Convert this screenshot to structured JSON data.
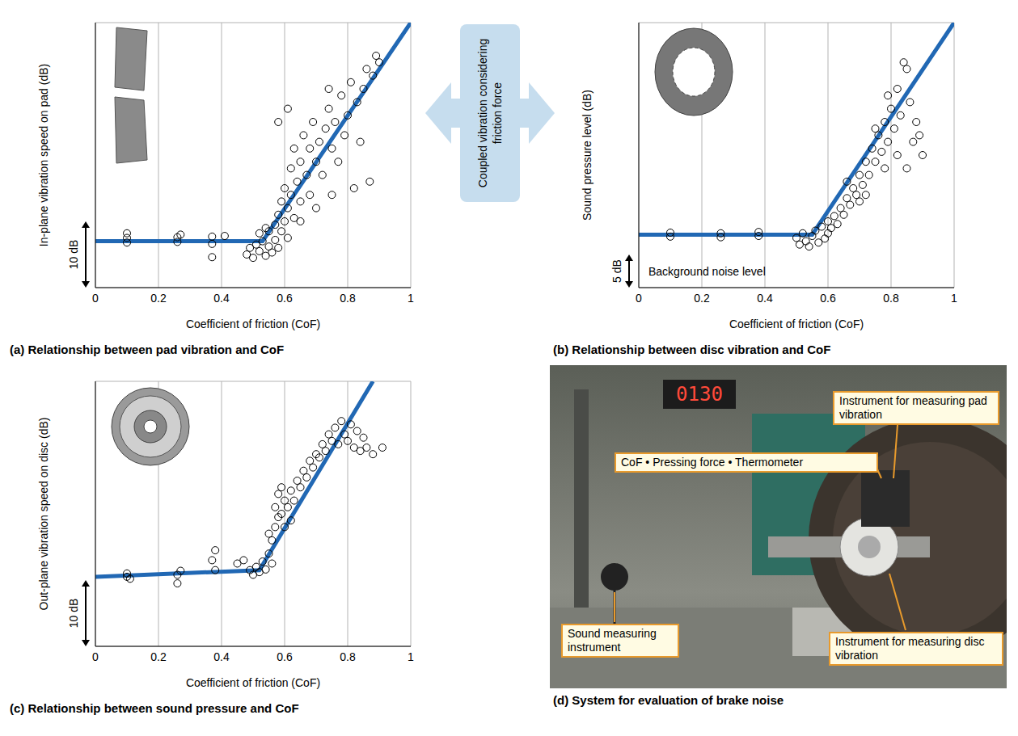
{
  "chart_data": [
    {
      "type": "scatter",
      "title": "(a) Relationship between pad vibration and CoF",
      "x_label": "Coefficient of friction (CoF)",
      "y_label": "In-plane vibration speed on pad (dB)",
      "xlim": [
        0,
        1
      ],
      "xticks": [
        0,
        0.2,
        0.4,
        0.6,
        0.8,
        1
      ],
      "ylim": [
        0,
        40
      ],
      "yticks": [
        0,
        10,
        20,
        30,
        40
      ],
      "grid": true,
      "tick_labels": "x",
      "scale_bar": {
        "value": 10,
        "label": "10 dB"
      },
      "series": [
        {
          "type": "scatter",
          "color": "#000000",
          "marker": "open_circle",
          "x": [
            0.1,
            0.1,
            0.1,
            0.26,
            0.26,
            0.27,
            0.37,
            0.37,
            0.37,
            0.41,
            0.48,
            0.49,
            0.5,
            0.51,
            0.52,
            0.53,
            0.54,
            0.55,
            0.55,
            0.56,
            0.57,
            0.57,
            0.58,
            0.58,
            0.59,
            0.59,
            0.6,
            0.6,
            0.61,
            0.61,
            0.62,
            0.62,
            0.63,
            0.63,
            0.64,
            0.65,
            0.65,
            0.66,
            0.67,
            0.68,
            0.68,
            0.69,
            0.7,
            0.71,
            0.72,
            0.73,
            0.74,
            0.75,
            0.76,
            0.77,
            0.78,
            0.79,
            0.8,
            0.81,
            0.82,
            0.83,
            0.84,
            0.85,
            0.86,
            0.87,
            0.88,
            0.89,
            0.9,
            0.61,
            0.58,
            0.65,
            0.7,
            0.75,
            0.54,
            0.52,
            0.74
          ],
          "values": [
            7.5,
            8.2,
            6.8,
            7.6,
            6.9,
            8.0,
            7.7,
            6.6,
            4.6,
            7.8,
            5,
            6,
            4.5,
            6.5,
            5.5,
            7,
            4.8,
            6.2,
            8.5,
            5.3,
            9.5,
            7.2,
            11,
            6,
            13,
            8.5,
            10,
            15,
            12,
            7.5,
            18,
            14,
            10.5,
            21,
            16,
            13,
            19,
            23,
            17,
            21,
            14,
            25,
            19,
            22,
            17,
            24,
            27,
            21,
            25,
            19,
            29,
            23,
            26,
            31,
            15,
            28,
            22,
            30,
            33,
            16,
            32,
            35,
            34,
            27,
            25,
            10,
            12,
            14,
            9,
            8.2,
            30
          ]
        },
        {
          "type": "line",
          "color": "#2168b4",
          "line_style": "solid",
          "x": [
            0,
            0.53,
            1
          ],
          "values": [
            7,
            7,
            40
          ]
        }
      ]
    },
    {
      "type": "scatter",
      "title": "(b) Relationship between disc vibration and CoF",
      "x_label": "Coefficient of friction (CoF)",
      "y_label": "Sound pressure level (dB)",
      "xlim": [
        0,
        1
      ],
      "xticks": [
        0,
        0.2,
        0.4,
        0.6,
        0.8,
        1
      ],
      "ylim": [
        0,
        40
      ],
      "yticks": [
        0,
        8,
        16,
        24,
        32,
        40
      ],
      "grid": true,
      "tick_labels": "x",
      "scale_bar": {
        "value": 5,
        "label": "5 dB"
      },
      "annotations": [
        "Background noise level"
      ],
      "series": [
        {
          "type": "scatter",
          "color": "#000000",
          "marker": "open_circle",
          "x": [
            0.1,
            0.1,
            0.26,
            0.26,
            0.38,
            0.38,
            0.5,
            0.51,
            0.52,
            0.53,
            0.54,
            0.55,
            0.56,
            0.57,
            0.58,
            0.59,
            0.6,
            0.6,
            0.61,
            0.62,
            0.63,
            0.64,
            0.65,
            0.66,
            0.67,
            0.68,
            0.69,
            0.7,
            0.71,
            0.72,
            0.73,
            0.74,
            0.75,
            0.76,
            0.77,
            0.78,
            0.79,
            0.8,
            0.81,
            0.82,
            0.83,
            0.84,
            0.85,
            0.86,
            0.87,
            0.88,
            0.89,
            0.9,
            0.7,
            0.75,
            0.78,
            0.82,
            0.85,
            0.66,
            0.72,
            0.79
          ],
          "values": [
            8.3,
            7.7,
            8.2,
            7.6,
            8.4,
            7.8,
            7.5,
            6.5,
            8.2,
            7,
            6.2,
            7.8,
            8.6,
            6.8,
            9.2,
            7.4,
            10,
            8.2,
            9,
            10.8,
            9.6,
            12,
            11,
            13.5,
            12.5,
            15,
            14,
            17,
            15.5,
            19,
            17,
            21,
            19,
            23,
            20.5,
            25,
            22,
            27,
            24,
            30,
            26,
            34,
            33,
            28,
            22,
            25,
            23,
            20,
            13,
            24,
            18,
            20,
            18,
            16,
            14,
            29
          ]
        },
        {
          "type": "line",
          "color": "#2168b4",
          "line_style": "solid",
          "x": [
            0,
            0.55,
            1
          ],
          "values": [
            8,
            8,
            40
          ]
        }
      ]
    },
    {
      "type": "scatter",
      "title": "(c) Relationship between sound pressure and CoF",
      "x_label": "Coefficient of friction (CoF)",
      "y_label": "Out-plane vibration speed on disc (dB)",
      "xlim": [
        0,
        1
      ],
      "xticks": [
        0,
        0.2,
        0.4,
        0.6,
        0.8,
        1
      ],
      "ylim": [
        0,
        40
      ],
      "yticks": [
        0,
        10,
        20,
        30,
        40
      ],
      "grid": true,
      "tick_labels": "x",
      "scale_bar": {
        "value": 10,
        "label": "10 dB"
      },
      "series": [
        {
          "type": "scatter",
          "color": "#000000",
          "marker": "open_circle",
          "x": [
            0.1,
            0.1,
            0.11,
            0.26,
            0.26,
            0.27,
            0.37,
            0.38,
            0.38,
            0.47,
            0.49,
            0.5,
            0.51,
            0.52,
            0.53,
            0.54,
            0.55,
            0.56,
            0.56,
            0.57,
            0.57,
            0.58,
            0.58,
            0.59,
            0.59,
            0.6,
            0.6,
            0.61,
            0.62,
            0.63,
            0.64,
            0.65,
            0.66,
            0.67,
            0.68,
            0.69,
            0.7,
            0.71,
            0.72,
            0.73,
            0.74,
            0.75,
            0.76,
            0.77,
            0.78,
            0.79,
            0.8,
            0.81,
            0.82,
            0.83,
            0.84,
            0.85,
            0.86,
            0.88,
            0.91,
            0.45,
            0.55,
            0.62
          ],
          "values": [
            10.5,
            11,
            10.2,
            9.5,
            10.8,
            11.4,
            13,
            11.5,
            14.5,
            13,
            11.5,
            10.8,
            12,
            11.2,
            12.8,
            11.6,
            14,
            16,
            12.5,
            18,
            21,
            19.5,
            23,
            20,
            24,
            22,
            18,
            21,
            23.5,
            22,
            25,
            24,
            26.5,
            25.5,
            28,
            27,
            29,
            28.5,
            30.5,
            29.5,
            32,
            31,
            33,
            30.5,
            34,
            32,
            31,
            33.5,
            30,
            32.5,
            29.5,
            31.5,
            30,
            29,
            30,
            12.5,
            17,
            19
          ]
        },
        {
          "type": "line",
          "color": "#2168b4",
          "line_style": "solid",
          "x": [
            0,
            0.52,
            0.88
          ],
          "values": [
            10.5,
            11.5,
            40
          ]
        }
      ]
    }
  ],
  "center_label": "Coupled vibration considering friction force",
  "photo": {
    "caption": "(d) System for evaluation of brake noise",
    "display": "0130",
    "callouts": [
      "Instrument for measuring pad vibration",
      "CoF • Pressing force • Thermometer",
      "Sound measuring instrument",
      "Instrument for measuring disc vibration"
    ]
  }
}
